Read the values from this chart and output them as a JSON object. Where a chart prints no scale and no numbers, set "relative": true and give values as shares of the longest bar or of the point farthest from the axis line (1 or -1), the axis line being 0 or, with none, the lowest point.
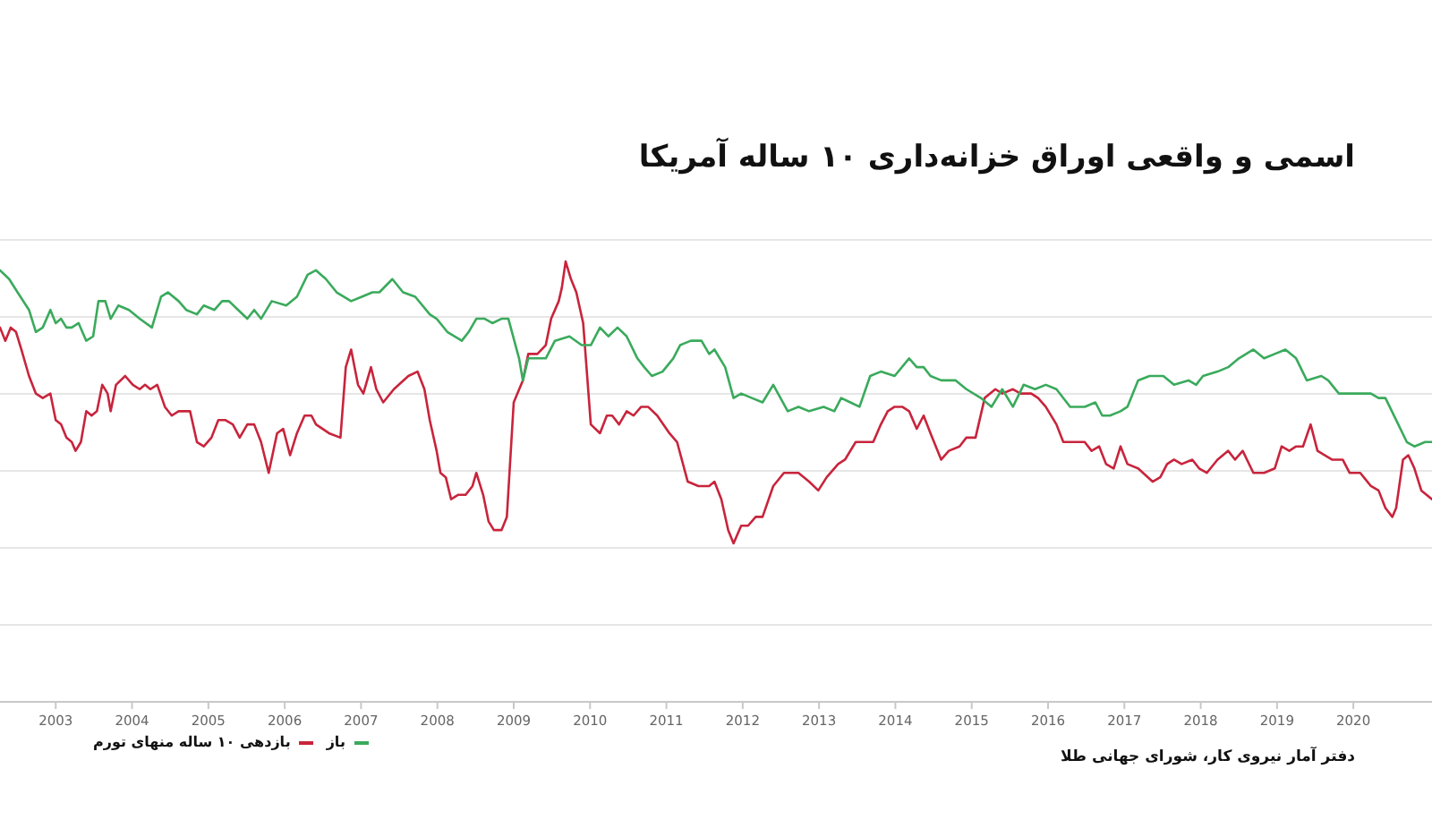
{
  "chart_data": {
    "type": "line",
    "title": "اسمی و واقعی اوراق خزانه‌داری ۱۰ ساله آمریکا",
    "annotations": [
      "دفتر آمار نیروی کار، شورای جهانی طلا"
    ],
    "relative": true,
    "xlim": [
      2002.27,
      2021.03
    ],
    "xticks": [
      2003,
      2004,
      2005,
      2006,
      2007,
      2008,
      2009,
      2010,
      2011,
      2012,
      2013,
      2014,
      2015,
      2016,
      2017,
      2018,
      2019,
      2020
    ],
    "grid": "y",
    "legend": "bottom left",
    "marker": "none",
    "line_style": "solid",
    "series": [
      {
        "name": "بازدهی ۱۰ ساله منهای تورم",
        "color": "#c8243c",
        "x": [
          2002.27,
          2002.34,
          2002.41,
          2002.48,
          2002.55,
          2002.65,
          2002.74,
          2002.83,
          2002.93,
          2003.0,
          2003.07,
          2003.14,
          2003.21,
          2003.26,
          2003.33,
          2003.4,
          2003.47,
          2003.54,
          2003.61,
          2003.68,
          2003.72,
          2003.79,
          2003.91,
          2004.01,
          2004.1,
          2004.17,
          2004.24,
          2004.33,
          2004.43,
          2004.52,
          2004.61,
          2004.76,
          2004.85,
          2004.94,
          2005.04,
          2005.13,
          2005.22,
          2005.32,
          2005.41,
          2005.51,
          2005.6,
          2005.69,
          2005.79,
          2005.9,
          2005.98,
          2006.07,
          2006.16,
          2006.26,
          2006.35,
          2006.41,
          2006.58,
          2006.73,
          2006.8,
          2006.87,
          2006.96,
          2007.03,
          2007.13,
          2007.2,
          2007.29,
          2007.43,
          2007.62,
          2007.74,
          2007.83,
          2007.9,
          2007.99,
          2008.04,
          2008.11,
          2008.18,
          2008.27,
          2008.37,
          2008.46,
          2008.51,
          2008.6,
          2008.67,
          2008.74,
          2008.84,
          2008.91,
          2009.0,
          2009.12,
          2009.19,
          2009.31,
          2009.42,
          2009.49,
          2009.59,
          2009.63,
          2009.68,
          2009.75,
          2009.82,
          2009.91,
          2010.01,
          2010.13,
          2010.22,
          2010.29,
          2010.38,
          2010.48,
          2010.57,
          2010.67,
          2010.76,
          2010.88,
          2011.04,
          2011.14,
          2011.28,
          2011.42,
          2011.56,
          2011.63,
          2011.72,
          2011.81,
          2011.88,
          2011.98,
          2012.07,
          2012.17,
          2012.26,
          2012.4,
          2012.54,
          2012.73,
          2012.87,
          2012.99,
          2013.1,
          2013.25,
          2013.34,
          2013.48,
          2013.62,
          2013.71,
          2013.81,
          2013.9,
          2013.99,
          2014.09,
          2014.18,
          2014.28,
          2014.37,
          2014.46,
          2014.6,
          2014.7,
          2014.84,
          2014.93,
          2015.05,
          2015.17,
          2015.31,
          2015.4,
          2015.54,
          2015.64,
          2015.78,
          2015.87,
          2015.97,
          2016.11,
          2016.2,
          2016.29,
          2016.39,
          2016.48,
          2016.57,
          2016.67,
          2016.76,
          2016.86,
          2016.95,
          2017.04,
          2017.18,
          2017.37,
          2017.47,
          2017.56,
          2017.65,
          2017.75,
          2017.89,
          2017.98,
          2018.08,
          2018.22,
          2018.36,
          2018.45,
          2018.55,
          2018.69,
          2018.83,
          2018.97,
          2019.06,
          2019.16,
          2019.25,
          2019.34,
          2019.44,
          2019.53,
          2019.72,
          2019.86,
          2019.95,
          2020.09,
          2020.23,
          2020.33,
          2020.42,
          2020.51,
          2020.56,
          2020.65,
          2020.72,
          2020.8,
          2020.89,
          2021.03
        ],
        "values": [
          0.85,
          0.82,
          0.85,
          0.84,
          0.8,
          0.74,
          0.7,
          0.69,
          0.7,
          0.64,
          0.63,
          0.6,
          0.59,
          0.57,
          0.59,
          0.66,
          0.65,
          0.66,
          0.72,
          0.7,
          0.66,
          0.72,
          0.74,
          0.72,
          0.71,
          0.72,
          0.71,
          0.72,
          0.67,
          0.65,
          0.66,
          0.66,
          0.59,
          0.58,
          0.6,
          0.64,
          0.64,
          0.63,
          0.6,
          0.63,
          0.63,
          0.59,
          0.52,
          0.61,
          0.62,
          0.56,
          0.61,
          0.65,
          0.65,
          0.63,
          0.61,
          0.6,
          0.76,
          0.8,
          0.72,
          0.7,
          0.76,
          0.71,
          0.68,
          0.71,
          0.74,
          0.75,
          0.71,
          0.64,
          0.57,
          0.52,
          0.51,
          0.46,
          0.47,
          0.47,
          0.49,
          0.52,
          0.47,
          0.41,
          0.39,
          0.39,
          0.42,
          0.68,
          0.73,
          0.79,
          0.79,
          0.81,
          0.87,
          0.91,
          0.94,
          1.0,
          0.96,
          0.93,
          0.86,
          0.63,
          0.61,
          0.65,
          0.65,
          0.63,
          0.66,
          0.65,
          0.67,
          0.67,
          0.65,
          0.61,
          0.59,
          0.5,
          0.49,
          0.49,
          0.5,
          0.46,
          0.39,
          0.36,
          0.4,
          0.4,
          0.42,
          0.42,
          0.49,
          0.52,
          0.52,
          0.5,
          0.48,
          0.51,
          0.54,
          0.55,
          0.59,
          0.59,
          0.59,
          0.63,
          0.66,
          0.67,
          0.67,
          0.66,
          0.62,
          0.65,
          0.61,
          0.55,
          0.57,
          0.58,
          0.6,
          0.6,
          0.69,
          0.71,
          0.7,
          0.71,
          0.7,
          0.7,
          0.69,
          0.67,
          0.63,
          0.59,
          0.59,
          0.59,
          0.59,
          0.57,
          0.58,
          0.54,
          0.53,
          0.58,
          0.54,
          0.53,
          0.5,
          0.51,
          0.54,
          0.55,
          0.54,
          0.55,
          0.53,
          0.52,
          0.55,
          0.57,
          0.55,
          0.57,
          0.52,
          0.52,
          0.53,
          0.58,
          0.57,
          0.58,
          0.58,
          0.63,
          0.57,
          0.55,
          0.55,
          0.52,
          0.52,
          0.49,
          0.48,
          0.44,
          0.42,
          0.44,
          0.55,
          0.56,
          0.53,
          0.48,
          0.46
        ]
      },
      {
        "name": "باز",
        "color": "#3aaa5c",
        "x": [
          2002.27,
          2002.39,
          2002.5,
          2002.65,
          2002.74,
          2002.83,
          2002.93,
          2003.0,
          2003.07,
          2003.14,
          2003.21,
          2003.3,
          2003.4,
          2003.49,
          2003.56,
          2003.65,
          2003.72,
          2003.82,
          2003.96,
          2004.1,
          2004.26,
          2004.38,
          2004.47,
          2004.61,
          2004.71,
          2004.85,
          2004.94,
          2005.08,
          2005.18,
          2005.27,
          2005.39,
          2005.51,
          2005.6,
          2005.69,
          2005.83,
          2006.02,
          2006.16,
          2006.3,
          2006.41,
          2006.54,
          2006.68,
          2006.87,
          2007.01,
          2007.15,
          2007.24,
          2007.41,
          2007.55,
          2007.71,
          2007.9,
          2007.99,
          2008.13,
          2008.32,
          2008.41,
          2008.51,
          2008.62,
          2008.72,
          2008.84,
          2008.93,
          2009.07,
          2009.12,
          2009.19,
          2009.31,
          2009.42,
          2009.54,
          2009.73,
          2009.89,
          2010.01,
          2010.13,
          2010.24,
          2010.36,
          2010.48,
          2010.62,
          2010.71,
          2010.81,
          2010.95,
          2011.09,
          2011.18,
          2011.32,
          2011.46,
          2011.56,
          2011.63,
          2011.77,
          2011.88,
          2011.98,
          2012.12,
          2012.26,
          2012.4,
          2012.59,
          2012.73,
          2012.87,
          2013.06,
          2013.2,
          2013.29,
          2013.41,
          2013.53,
          2013.67,
          2013.81,
          2013.99,
          2014.18,
          2014.28,
          2014.37,
          2014.46,
          2014.6,
          2014.79,
          2014.93,
          2015.12,
          2015.26,
          2015.4,
          2015.54,
          2015.68,
          2015.83,
          2015.97,
          2016.11,
          2016.29,
          2016.48,
          2016.62,
          2016.71,
          2016.81,
          2016.95,
          2017.04,
          2017.18,
          2017.33,
          2017.51,
          2017.65,
          2017.84,
          2017.94,
          2018.03,
          2018.22,
          2018.36,
          2018.5,
          2018.69,
          2018.83,
          2018.97,
          2019.11,
          2019.25,
          2019.39,
          2019.58,
          2019.67,
          2019.81,
          2019.95,
          2020.09,
          2020.23,
          2020.33,
          2020.42,
          2020.56,
          2020.7,
          2020.8,
          2020.94,
          2021.03
        ],
        "values": [
          0.98,
          0.96,
          0.93,
          0.89,
          0.84,
          0.85,
          0.89,
          0.86,
          0.87,
          0.85,
          0.85,
          0.86,
          0.82,
          0.83,
          0.91,
          0.91,
          0.87,
          0.9,
          0.89,
          0.87,
          0.85,
          0.92,
          0.93,
          0.91,
          0.89,
          0.88,
          0.9,
          0.89,
          0.91,
          0.91,
          0.89,
          0.87,
          0.89,
          0.87,
          0.91,
          0.9,
          0.92,
          0.97,
          0.98,
          0.96,
          0.93,
          0.91,
          0.92,
          0.93,
          0.93,
          0.96,
          0.93,
          0.92,
          0.88,
          0.87,
          0.84,
          0.82,
          0.84,
          0.87,
          0.87,
          0.86,
          0.87,
          0.87,
          0.78,
          0.73,
          0.78,
          0.78,
          0.78,
          0.82,
          0.83,
          0.81,
          0.81,
          0.85,
          0.83,
          0.85,
          0.83,
          0.78,
          0.76,
          0.74,
          0.75,
          0.78,
          0.81,
          0.82,
          0.82,
          0.79,
          0.8,
          0.76,
          0.69,
          0.7,
          0.69,
          0.68,
          0.72,
          0.66,
          0.67,
          0.66,
          0.67,
          0.66,
          0.69,
          0.68,
          0.67,
          0.74,
          0.75,
          0.74,
          0.78,
          0.76,
          0.76,
          0.74,
          0.73,
          0.73,
          0.71,
          0.69,
          0.67,
          0.71,
          0.67,
          0.72,
          0.71,
          0.72,
          0.71,
          0.67,
          0.67,
          0.68,
          0.65,
          0.65,
          0.66,
          0.67,
          0.73,
          0.74,
          0.74,
          0.72,
          0.73,
          0.72,
          0.74,
          0.75,
          0.76,
          0.78,
          0.8,
          0.78,
          0.79,
          0.8,
          0.78,
          0.73,
          0.74,
          0.73,
          0.7,
          0.7,
          0.7,
          0.7,
          0.69,
          0.69,
          0.64,
          0.59,
          0.58,
          0.59,
          0.59
        ]
      }
    ]
  }
}
